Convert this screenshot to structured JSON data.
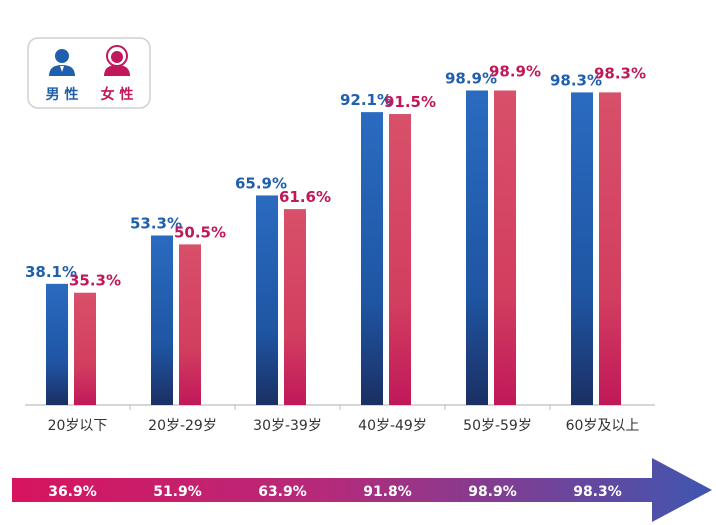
{
  "chart_data": {
    "type": "bar",
    "categories": [
      "20岁以下",
      "20岁-29岁",
      "30岁-39岁",
      "40岁-49岁",
      "50岁-59岁",
      "60岁及以上"
    ],
    "series": [
      {
        "name": "男性",
        "values": [
          38.1,
          53.3,
          65.9,
          92.1,
          98.9,
          98.3
        ],
        "color": "#1f5fae"
      },
      {
        "name": "女性",
        "values": [
          35.3,
          50.5,
          61.6,
          91.5,
          98.9,
          98.3
        ],
        "color": "#d6405f"
      }
    ],
    "value_labels": {
      "male": [
        "38.1%",
        "53.3%",
        "65.9%",
        "92.1%",
        "98.9%",
        "98.3%"
      ],
      "female": [
        "35.3%",
        "50.5%",
        "61.6%",
        "91.5%",
        "98.9%",
        "98.3%"
      ]
    },
    "overall_labels": [
      "36.9%",
      "51.9%",
      "63.9%",
      "91.8%",
      "98.9%",
      "98.3%"
    ],
    "ylim": [
      0,
      100
    ],
    "legend_position": "top-left",
    "grid": false
  },
  "colors": {
    "male": "#1f5fae",
    "male_dark": "#1b2f63",
    "female": "#d6405f",
    "female_dark": "#c0185a",
    "arrow_start": "#d8145e",
    "arrow_end": "#3f56b0"
  },
  "legend": {
    "male_label": "男 性",
    "female_label": "女 性",
    "male_icon": "male-person-icon",
    "female_icon": "female-person-icon"
  }
}
